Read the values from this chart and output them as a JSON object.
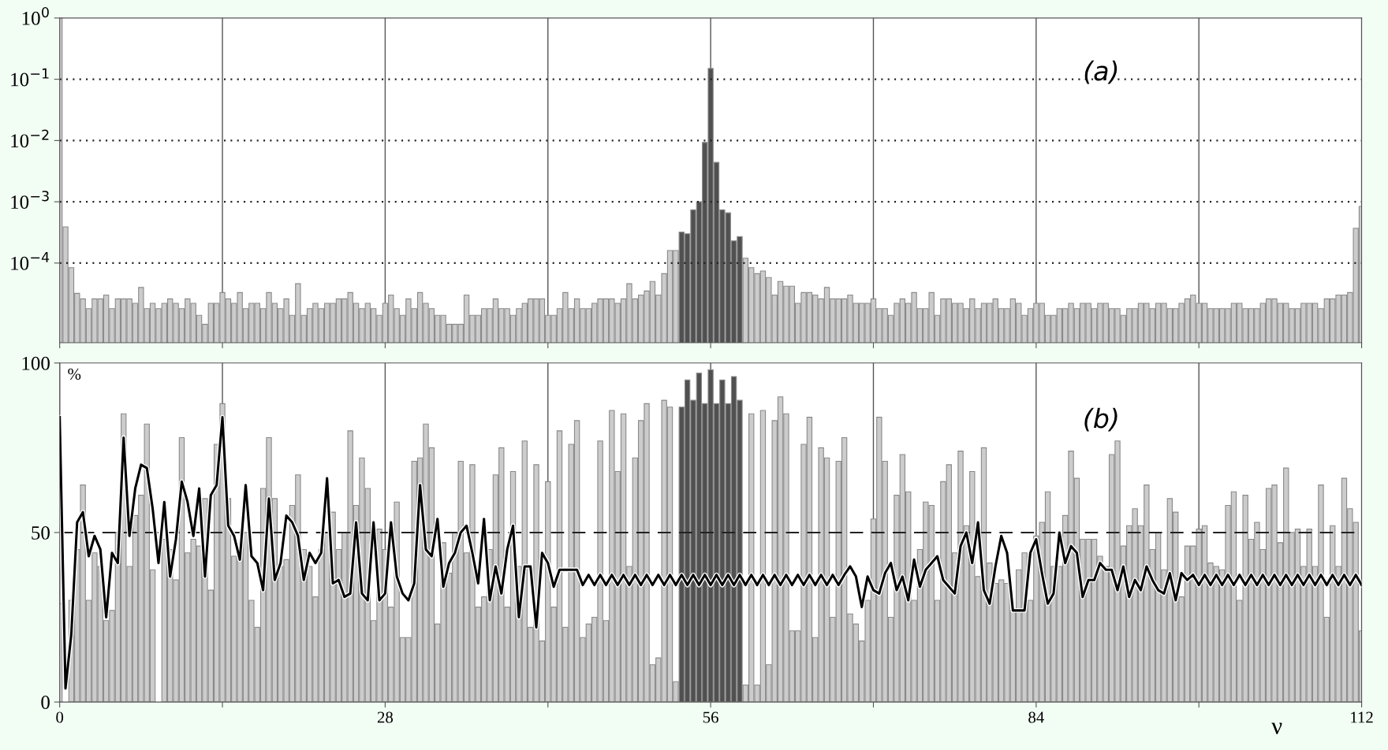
{
  "chart_data": [
    {
      "type": "bar",
      "annotations": [
        "(a)"
      ],
      "x": [
        0,
        0.5,
        1,
        1.5,
        2,
        2.5,
        3,
        3.5,
        4,
        4.5,
        5,
        5.5,
        6,
        6.5,
        7,
        7.5,
        8,
        8.5,
        9,
        9.5,
        10,
        10.5,
        11,
        11.5,
        12,
        12.5,
        13,
        13.5,
        14,
        14.5,
        15,
        15.5,
        16,
        16.5,
        17,
        17.5,
        18,
        18.5,
        19,
        19.5,
        20,
        20.5,
        21,
        21.5,
        22,
        22.5,
        23,
        23.5,
        24,
        24.5,
        25,
        25.5,
        26,
        26.5,
        27,
        27.5,
        28,
        28.5,
        29,
        29.5,
        30,
        30.5,
        31,
        31.5,
        32,
        32.5,
        33,
        33.5,
        34,
        34.5,
        35,
        35.5,
        36,
        36.5,
        37,
        37.5,
        38,
        38.5,
        39,
        39.5,
        40,
        40.5,
        41,
        41.5,
        42,
        42.5,
        43,
        43.5,
        44,
        44.5,
        45,
        45.5,
        46,
        46.5,
        47,
        47.5,
        48,
        48.5,
        49,
        49.5,
        50,
        50.5,
        51,
        51.5,
        52,
        52.5,
        53,
        53.5,
        54,
        54.5,
        55,
        55.5,
        56,
        56.5,
        57,
        57.5,
        58,
        58.5,
        59,
        59.5,
        60,
        60.5,
        61,
        61.5,
        62,
        62.5,
        63,
        63.5,
        64,
        64.5,
        65,
        65.5,
        66,
        66.5,
        67,
        67.5,
        68,
        68.5,
        69,
        69.5,
        70,
        70.5,
        71,
        71.5,
        72,
        72.5,
        73,
        73.5,
        74,
        74.5,
        75,
        75.5,
        76,
        76.5,
        77,
        77.5,
        78,
        78.5,
        79,
        79.5,
        80,
        80.5,
        81,
        81.5,
        82,
        82.5,
        83,
        83.5,
        84,
        84.5,
        85,
        85.5,
        86,
        86.5,
        87,
        87.5,
        88,
        88.5,
        89,
        89.5,
        90,
        90.5,
        91,
        91.5,
        92,
        92.5,
        93,
        93.5,
        94,
        94.5,
        95,
        95.5,
        96,
        96.5,
        97,
        97.5,
        98,
        98.5,
        99,
        99.5,
        100,
        100.5,
        101,
        101.5,
        102,
        102.5,
        103,
        103.5,
        104,
        104.5,
        105,
        105.5,
        106,
        106.5,
        107,
        107.5,
        108,
        108.5,
        109,
        109.5,
        110,
        110.5,
        111,
        111.5,
        112
      ],
      "series": [
        {
          "color": "#cccccc",
          "values": [
            1.0,
            0.00039,
            8.4e-05,
            3.2e-05,
            2.6e-05,
            1.8e-05,
            2.6e-05,
            2.6e-05,
            3e-05,
            1.8e-05,
            2.6e-05,
            2.6e-05,
            2.6e-05,
            2.2e-05,
            4e-05,
            1.8e-05,
            2.2e-05,
            1.8e-05,
            2.2e-05,
            2.6e-05,
            2.2e-05,
            1.8e-05,
            2.6e-05,
            2.2e-05,
            1.4e-05,
            1e-05,
            2.2e-05,
            2.2e-05,
            3.3e-05,
            2.6e-05,
            2.2e-05,
            3.3e-05,
            1.8e-05,
            2.2e-05,
            2.2e-05,
            1.8e-05,
            3.3e-05,
            2.2e-05,
            1.8e-05,
            2.6e-05,
            1.4e-05,
            4.6e-05,
            1.4e-05,
            1.8e-05,
            2.2e-05,
            1.8e-05,
            2.2e-05,
            2.2e-05,
            2.6e-05,
            2.6e-05,
            3.3e-05,
            2.2e-05,
            1.8e-05,
            2.2e-05,
            1.8e-05,
            1.4e-05,
            2.2e-05,
            3e-05,
            1.8e-05,
            1.4e-05,
            2.6e-05,
            1.8e-05,
            3.3e-05,
            2.2e-05,
            1.8e-05,
            1.4e-05,
            1.4e-05,
            1e-05,
            1e-05,
            1e-05,
            3e-05,
            1.4e-05,
            1.4e-05,
            1.8e-05,
            1.8e-05,
            2.6e-05,
            1.8e-05,
            1.8e-05,
            1.4e-05,
            1.8e-05,
            2.2e-05,
            2.6e-05,
            2.6e-05,
            2.6e-05,
            1.4e-05,
            1.4e-05,
            1.8e-05,
            3.3e-05,
            1.8e-05,
            2.6e-05,
            1.8e-05,
            1.8e-05,
            2.2e-05,
            2.6e-05,
            2.6e-05,
            2.6e-05,
            2.2e-05,
            2.6e-05,
            4.6e-05,
            2.6e-05,
            3e-05,
            3.5e-05,
            5e-05,
            3e-05,
            6.7e-05,
            0.00016,
            0.00016,
            null,
            null,
            null,
            null,
            null,
            null,
            null,
            null,
            null,
            null,
            null,
            0.00012,
            8.4e-05,
            6.7e-05,
            7.4e-05,
            5.8e-05,
            3e-05,
            5e-05,
            4.2e-05,
            4.2e-05,
            2.2e-05,
            3.3e-05,
            3.3e-05,
            3e-05,
            2.6e-05,
            4e-05,
            2.6e-05,
            2.6e-05,
            2.6e-05,
            3e-05,
            2.2e-05,
            2.2e-05,
            2.2e-05,
            2.6e-05,
            1.8e-05,
            1.8e-05,
            1.4e-05,
            2.2e-05,
            2.6e-05,
            2.2e-05,
            3.3e-05,
            1.8e-05,
            1.8e-05,
            3.3e-05,
            1.4e-05,
            2.6e-05,
            2.6e-05,
            2.2e-05,
            2.2e-05,
            1.8e-05,
            2.6e-05,
            1.8e-05,
            2.2e-05,
            2.2e-05,
            2.6e-05,
            1.8e-05,
            1.8e-05,
            2.6e-05,
            2.2e-05,
            1.4e-05,
            1.8e-05,
            2.2e-05,
            2.2e-05,
            1.4e-05,
            1.4e-05,
            1.8e-05,
            1.8e-05,
            2.2e-05,
            1.8e-05,
            2.2e-05,
            2.2e-05,
            1.8e-05,
            2.2e-05,
            2.2e-05,
            1.8e-05,
            1.8e-05,
            1.4e-05,
            1.8e-05,
            1.8e-05,
            2.2e-05,
            2.2e-05,
            1.8e-05,
            2.2e-05,
            2.2e-05,
            1.8e-05,
            1.8e-05,
            2.2e-05,
            2.6e-05,
            3e-05,
            2.2e-05,
            2.2e-05,
            1.8e-05,
            1.8e-05,
            1.8e-05,
            1.8e-05,
            2.2e-05,
            2.2e-05,
            1.8e-05,
            1.8e-05,
            1.8e-05,
            2.2e-05,
            2.6e-05,
            2.6e-05,
            2.2e-05,
            2.2e-05,
            1.8e-05,
            1.8e-05,
            2.2e-05,
            2.2e-05,
            2.2e-05,
            1.8e-05,
            2.6e-05,
            2.6e-05,
            3e-05,
            3e-05,
            3.3e-05,
            0.00037,
            0.00084
          ]
        },
        {
          "color": "#505050",
          "x": [
            53.5,
            54,
            54.5,
            55,
            55.5,
            56,
            56.5,
            57,
            57.5,
            58,
            58.5
          ],
          "values": [
            0.00032,
            0.0003,
            0.00074,
            0.001,
            0.0093,
            0.15,
            0.0044,
            0.00074,
            0.00066,
            0.00023,
            0.00027
          ]
        }
      ],
      "xlim": [
        0,
        112
      ],
      "xticks": [
        0,
        {
          "value": 14,
          "label": null
        },
        28,
        {
          "value": 42,
          "label": null
        },
        56,
        {
          "value": 70,
          "label": null
        },
        84,
        {
          "value": 98,
          "label": null
        },
        112
      ],
      "ylim": [
        5e-06,
        1
      ],
      "log": true,
      "yticks": [
        {
          "value": 0.0001,
          "label": "10$^{−4}$"
        },
        {
          "value": 0.001,
          "label": "10$^{−3}$"
        },
        {
          "value": 0.01,
          "label": "10$^{−2}$"
        },
        {
          "value": 0.1,
          "label": "10$^{−1}$"
        },
        {
          "value": 1,
          "label": "10$^{0}$"
        }
      ],
      "ref_lines": [
        {
          "axis": "y",
          "value": 0.0001,
          "line_style": "dotted"
        },
        {
          "axis": "y",
          "value": 0.001,
          "line_style": "dotted"
        },
        {
          "axis": "y",
          "value": 0.01,
          "line_style": "dotted"
        },
        {
          "axis": "y",
          "value": 0.1,
          "line_style": "dotted"
        }
      ],
      "grid": "x",
      "tick_labels": "y"
    },
    {
      "type": "bar",
      "annotations": [
        "(b)"
      ],
      "ylabel": "%",
      "xlabel": "ν",
      "x": [
        0,
        0.5,
        1,
        1.5,
        2,
        2.5,
        3,
        3.5,
        4,
        4.5,
        5,
        5.5,
        6,
        6.5,
        7,
        7.5,
        8,
        8.5,
        9,
        9.5,
        10,
        10.5,
        11,
        11.5,
        12,
        12.5,
        13,
        13.5,
        14,
        14.5,
        15,
        15.5,
        16,
        16.5,
        17,
        17.5,
        18,
        18.5,
        19,
        19.5,
        20,
        20.5,
        21,
        21.5,
        22,
        22.5,
        23,
        23.5,
        24,
        24.5,
        25,
        25.5,
        26,
        26.5,
        27,
        27.5,
        28,
        28.5,
        29,
        29.5,
        30,
        30.5,
        31,
        31.5,
        32,
        32.5,
        33,
        33.5,
        34,
        34.5,
        35,
        35.5,
        36,
        36.5,
        37,
        37.5,
        38,
        38.5,
        39,
        39.5,
        40,
        40.5,
        41,
        41.5,
        42,
        42.5,
        43,
        43.5,
        44,
        44.5,
        45,
        45.5,
        46,
        46.5,
        47,
        47.5,
        48,
        48.5,
        49,
        49.5,
        50,
        50.5,
        51,
        51.5,
        52,
        52.5,
        53,
        53.5,
        54,
        54.5,
        55,
        55.5,
        56,
        56.5,
        57,
        57.5,
        58,
        58.5,
        59,
        59.5,
        60,
        60.5,
        61,
        61.5,
        62,
        62.5,
        63,
        63.5,
        64,
        64.5,
        65,
        65.5,
        66,
        66.5,
        67,
        67.5,
        68,
        68.5,
        69,
        69.5,
        70,
        70.5,
        71,
        71.5,
        72,
        72.5,
        73,
        73.5,
        74,
        74.5,
        75,
        75.5,
        76,
        76.5,
        77,
        77.5,
        78,
        78.5,
        79,
        79.5,
        80,
        80.5,
        81,
        81.5,
        82,
        82.5,
        83,
        83.5,
        84,
        84.5,
        85,
        85.5,
        86,
        86.5,
        87,
        87.5,
        88,
        88.5,
        89,
        89.5,
        90,
        90.5,
        91,
        91.5,
        92,
        92.5,
        93,
        93.5,
        94,
        94.5,
        95,
        95.5,
        96,
        96.5,
        97,
        97.5,
        98,
        98.5,
        99,
        99.5,
        100,
        100.5,
        101,
        101.5,
        102,
        102.5,
        103,
        103.5,
        104,
        104.5,
        105,
        105.5,
        106,
        106.5,
        107,
        107.5,
        108,
        108.5,
        109,
        109.5,
        110,
        110.5,
        111,
        111.5,
        112
      ],
      "series": [
        {
          "color": "#cccccc",
          "values": [
            29,
            null,
            30,
            45,
            64,
            30,
            44,
            40,
            24,
            27,
            50,
            85,
            40,
            55,
            61,
            82,
            39,
            null,
            48,
            45,
            36,
            78,
            44,
            48,
            46,
            60,
            33,
            76,
            88,
            60,
            43,
            45,
            50,
            30,
            22,
            63,
            78,
            60,
            40,
            42,
            58,
            67,
            45,
            40,
            31,
            45,
            50,
            56,
            45,
            50,
            80,
            58,
            72,
            63,
            24,
            51,
            45,
            28,
            59,
            19,
            19,
            71,
            72,
            82,
            75,
            23,
            47,
            38,
            50,
            71,
            44,
            70,
            28,
            31,
            45,
            67,
            75,
            28,
            68,
            40,
            77,
            22,
            70,
            18,
            65,
            28,
            80,
            22,
            76,
            83,
            19,
            23,
            25,
            77,
            24,
            86,
            68,
            85,
            40,
            72,
            83,
            88,
            11,
            13,
            89,
            87,
            6,
            null,
            null,
            null,
            null,
            null,
            null,
            null,
            null,
            null,
            null,
            null,
            5,
            85,
            5,
            86,
            11,
            83,
            90,
            85,
            21,
            21,
            76,
            84,
            19,
            75,
            72,
            25,
            71,
            78,
            26,
            23,
            18,
            30,
            54,
            84,
            71,
            25,
            61,
            73,
            62,
            30,
            45,
            59,
            58,
            30,
            65,
            70,
            44,
            74,
            52,
            68,
            37,
            75,
            41,
            35,
            36,
            35,
            27,
            39,
            44,
            30,
            49,
            53,
            62,
            40,
            40,
            55,
            74,
            66,
            48,
            48,
            48,
            43,
            40,
            73,
            77,
            46,
            52,
            57,
            52,
            64,
            45,
            50,
            39,
            60,
            56,
            31,
            46,
            46,
            51,
            52,
            41,
            40,
            39,
            58,
            62,
            30,
            61,
            48,
            53,
            45,
            63,
            64,
            47,
            69,
            50,
            51,
            40,
            51,
            40,
            64,
            25,
            52,
            40,
            66,
            57,
            53,
            21
          ]
        },
        {
          "color": "#505050",
          "x": [
            53.5,
            54,
            54.5,
            55,
            55.5,
            56,
            56.5,
            57,
            57.5,
            58,
            58.5
          ],
          "values": [
            87,
            95,
            89,
            97,
            88,
            98,
            88,
            95,
            88,
            96,
            89
          ]
        },
        {
          "type": "line",
          "color": "#000000",
          "values": [
            84,
            4,
            20,
            53,
            56,
            43,
            49,
            45,
            25,
            44,
            41,
            78,
            49,
            63,
            70,
            69,
            57,
            41,
            59,
            37,
            48,
            65,
            59,
            49,
            63,
            37,
            61,
            64,
            84,
            52,
            49,
            42,
            64,
            43,
            41,
            33,
            60,
            36,
            41,
            55,
            53,
            49,
            36,
            44,
            41,
            44,
            66,
            35,
            36,
            31,
            32,
            53,
            32,
            30,
            53,
            30,
            32,
            53,
            37,
            32,
            30,
            35,
            64,
            45,
            43,
            54,
            34,
            41,
            44,
            50,
            52,
            44,
            35,
            54,
            30,
            40,
            32,
            45,
            52,
            25,
            40,
            40,
            22,
            44,
            41,
            34,
            39,
            39,
            39,
            39,
            34.5,
            37.5,
            34.5,
            37.5,
            34.5,
            37.5,
            34.5,
            37.5,
            34.5,
            37.5,
            34.5,
            37.5,
            34.5,
            37.5,
            34.5,
            37.5,
            34.5,
            37.5,
            34.5,
            37.5,
            34.5,
            37.5,
            34.5,
            37.5,
            34.5,
            37.5,
            34.5,
            37.5,
            34.5,
            37.5,
            34.5,
            37.5,
            34.5,
            37.5,
            34.5,
            37.5,
            34.5,
            37.5,
            34.5,
            37.5,
            34.5,
            37.5,
            34.5,
            37.5,
            34.5,
            37.5,
            40,
            37,
            28,
            37,
            33,
            32,
            38,
            41,
            33,
            37,
            30,
            42,
            34,
            39,
            41,
            43,
            36,
            34,
            32,
            46,
            50,
            41,
            53,
            33,
            29,
            40,
            49,
            44,
            27,
            27,
            27,
            44,
            48,
            38,
            29,
            32,
            50,
            41,
            46,
            44,
            31,
            36,
            36,
            41,
            39,
            39,
            33,
            40,
            31,
            36,
            33,
            40,
            36,
            33,
            32,
            38,
            30,
            38,
            36,
            37.5,
            34.5,
            37.5,
            34.5,
            37.5,
            34.5,
            37.5,
            34.5,
            37.5,
            34.5,
            37.5,
            34.5,
            37.5,
            34.5,
            37.5,
            34.5,
            37.5,
            34.5,
            37.5,
            34.5,
            37.5,
            34.5,
            37.5,
            34.5,
            37.5,
            34.5,
            37.5,
            34.5,
            37.5,
            34.5
          ]
        }
      ],
      "xlim": [
        0,
        112
      ],
      "xticks": [
        0,
        {
          "value": 14,
          "label": null
        },
        28,
        {
          "value": 42,
          "label": null
        },
        56,
        {
          "value": 70,
          "label": null
        },
        84,
        {
          "value": 98,
          "label": null
        },
        112
      ],
      "ylim": [
        0,
        100
      ],
      "yticks": [
        0,
        50,
        100
      ],
      "ref_lines": [
        {
          "axis": "y",
          "value": 50,
          "line_style": "dashed"
        }
      ],
      "grid": "x"
    }
  ]
}
